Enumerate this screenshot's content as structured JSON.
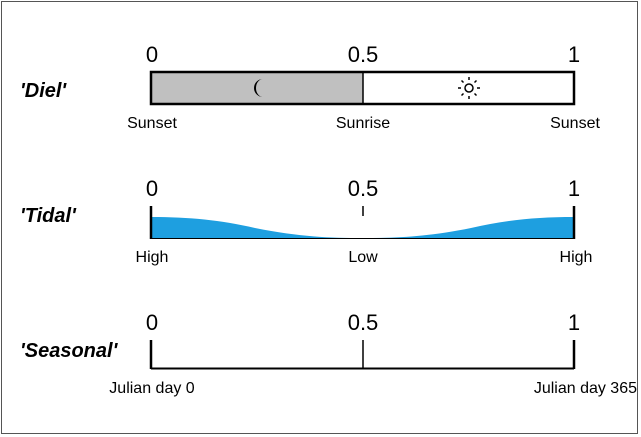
{
  "rows": [
    {
      "label": "'Diel'",
      "ticks": [
        "0",
        "0.5",
        "1"
      ],
      "under_labels": [
        "Sunset",
        "Sunrise",
        "Sunset"
      ],
      "night_color": "#c0c0c0",
      "day_color": "#ffffff",
      "icons": [
        "moon-icon",
        "sun-icon"
      ]
    },
    {
      "label": "'Tidal'",
      "ticks": [
        "0",
        "0.5",
        "1"
      ],
      "under_labels": [
        "High",
        "Low",
        "High"
      ],
      "water_color": "#1e9fe0"
    },
    {
      "label": "'Seasonal'",
      "ticks": [
        "0",
        "0.5",
        "1"
      ],
      "under_labels": [
        "Julian day 0",
        "Julian day 365"
      ]
    }
  ]
}
